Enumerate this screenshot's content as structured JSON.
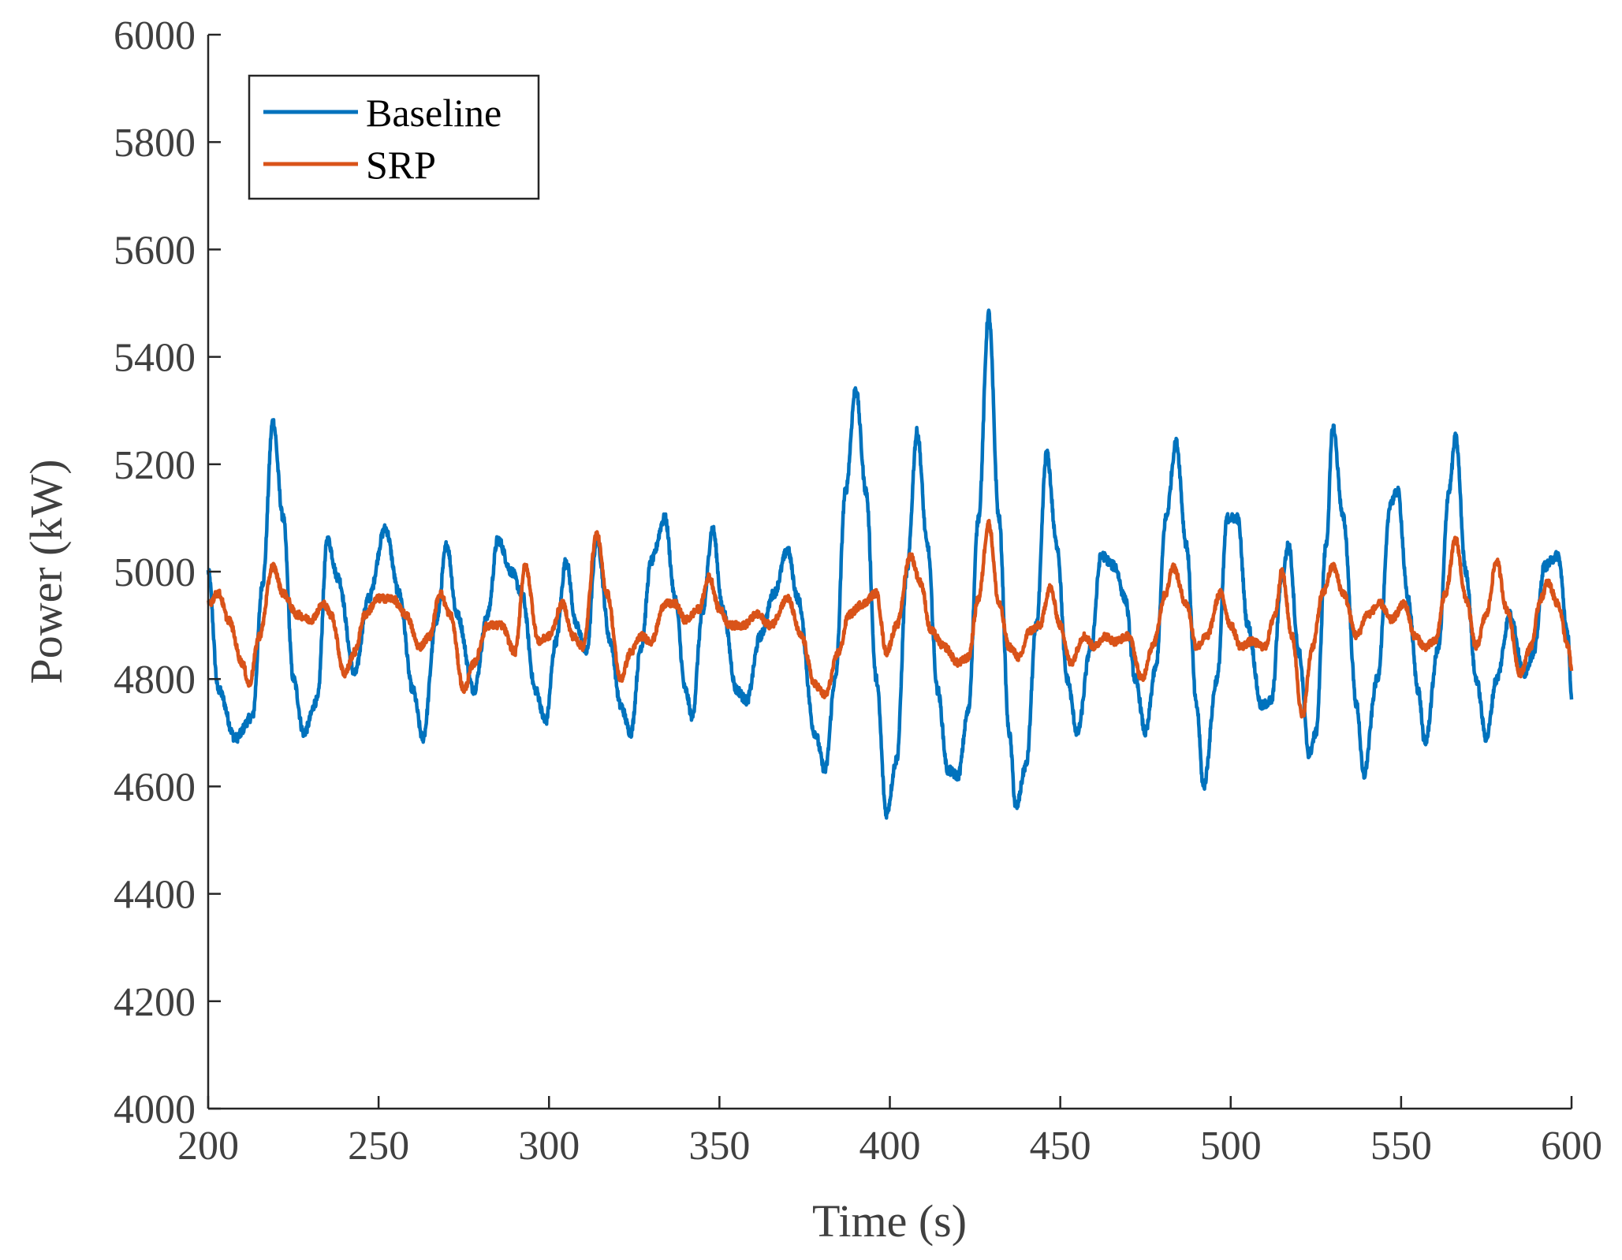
{
  "chart_data": {
    "type": "line",
    "title": "",
    "xlabel": "Time (s)",
    "ylabel": "Power (kW)",
    "xlim": [
      200,
      600
    ],
    "ylim": [
      4000,
      6000
    ],
    "xticks": [
      200,
      250,
      300,
      350,
      400,
      450,
      500,
      550,
      600
    ],
    "yticks": [
      4000,
      4200,
      4400,
      4600,
      4800,
      5000,
      5200,
      5400,
      5600,
      5800,
      6000
    ],
    "legend_position": "top-left",
    "series": [
      {
        "name": "Baseline",
        "color": "#0072BD",
        "keypoints": [
          [
            200,
            5000
          ],
          [
            203,
            4780
          ],
          [
            208,
            4690
          ],
          [
            213,
            4730
          ],
          [
            216,
            4980
          ],
          [
            219,
            5280
          ],
          [
            222,
            5100
          ],
          [
            225,
            4800
          ],
          [
            228,
            4700
          ],
          [
            232,
            4760
          ],
          [
            235,
            5060
          ],
          [
            238,
            4990
          ],
          [
            243,
            4810
          ],
          [
            247,
            4950
          ],
          [
            252,
            5080
          ],
          [
            256,
            4960
          ],
          [
            260,
            4780
          ],
          [
            263,
            4690
          ],
          [
            267,
            4910
          ],
          [
            270,
            5050
          ],
          [
            273,
            4920
          ],
          [
            278,
            4780
          ],
          [
            282,
            4920
          ],
          [
            285,
            5060
          ],
          [
            289,
            5000
          ],
          [
            292,
            4960
          ],
          [
            296,
            4780
          ],
          [
            299,
            4720
          ],
          [
            302,
            4870
          ],
          [
            305,
            5020
          ],
          [
            308,
            4900
          ],
          [
            311,
            4850
          ],
          [
            314,
            5060
          ],
          [
            318,
            4870
          ],
          [
            321,
            4750
          ],
          [
            324,
            4700
          ],
          [
            327,
            4860
          ],
          [
            330,
            5020
          ],
          [
            334,
            5100
          ],
          [
            337,
            4950
          ],
          [
            340,
            4780
          ],
          [
            342,
            4730
          ],
          [
            345,
            4920
          ],
          [
            348,
            5080
          ],
          [
            351,
            4930
          ],
          [
            355,
            4780
          ],
          [
            358,
            4760
          ],
          [
            362,
            4880
          ],
          [
            366,
            4960
          ],
          [
            370,
            5040
          ],
          [
            373,
            4950
          ],
          [
            378,
            4700
          ],
          [
            381,
            4630
          ],
          [
            384,
            4800
          ],
          [
            387,
            5150
          ],
          [
            390,
            5340
          ],
          [
            393,
            5150
          ],
          [
            396,
            4800
          ],
          [
            399,
            4550
          ],
          [
            402,
            4650
          ],
          [
            405,
            5000
          ],
          [
            408,
            5260
          ],
          [
            411,
            5050
          ],
          [
            414,
            4780
          ],
          [
            417,
            4630
          ],
          [
            420,
            4620
          ],
          [
            423,
            4740
          ],
          [
            426,
            5100
          ],
          [
            429,
            5480
          ],
          [
            432,
            5100
          ],
          [
            435,
            4700
          ],
          [
            437,
            4560
          ],
          [
            440,
            4640
          ],
          [
            443,
            4900
          ],
          [
            446,
            5220
          ],
          [
            449,
            5050
          ],
          [
            452,
            4800
          ],
          [
            455,
            4700
          ],
          [
            459,
            4860
          ],
          [
            462,
            5030
          ],
          [
            466,
            5010
          ],
          [
            469,
            4950
          ],
          [
            472,
            4800
          ],
          [
            475,
            4700
          ],
          [
            478,
            4820
          ],
          [
            481,
            5100
          ],
          [
            484,
            5240
          ],
          [
            487,
            5050
          ],
          [
            490,
            4750
          ],
          [
            492,
            4600
          ],
          [
            496,
            4800
          ],
          [
            499,
            5100
          ],
          [
            502,
            5100
          ],
          [
            505,
            4900
          ],
          [
            509,
            4750
          ],
          [
            512,
            4760
          ],
          [
            515,
            4990
          ],
          [
            517,
            5050
          ],
          [
            520,
            4850
          ],
          [
            523,
            4660
          ],
          [
            525,
            4700
          ],
          [
            528,
            5050
          ],
          [
            530,
            5270
          ],
          [
            533,
            5100
          ],
          [
            537,
            4750
          ],
          [
            539,
            4620
          ],
          [
            543,
            4800
          ],
          [
            547,
            5130
          ],
          [
            549,
            5150
          ],
          [
            552,
            4950
          ],
          [
            555,
            4780
          ],
          [
            557,
            4680
          ],
          [
            561,
            4860
          ],
          [
            564,
            5150
          ],
          [
            566,
            5250
          ],
          [
            569,
            5000
          ],
          [
            572,
            4800
          ],
          [
            575,
            4690
          ],
          [
            578,
            4800
          ],
          [
            582,
            4920
          ],
          [
            586,
            4810
          ],
          [
            589,
            4850
          ],
          [
            592,
            5010
          ],
          [
            596,
            5030
          ],
          [
            599,
            4880
          ],
          [
            600,
            4760
          ]
        ]
      },
      {
        "name": "SRP",
        "color": "#D95319",
        "keypoints": [
          [
            200,
            4940
          ],
          [
            203,
            4960
          ],
          [
            206,
            4910
          ],
          [
            210,
            4830
          ],
          [
            212,
            4790
          ],
          [
            215,
            4880
          ],
          [
            219,
            5010
          ],
          [
            222,
            4960
          ],
          [
            226,
            4920
          ],
          [
            230,
            4910
          ],
          [
            234,
            4940
          ],
          [
            236,
            4920
          ],
          [
            240,
            4810
          ],
          [
            243,
            4850
          ],
          [
            246,
            4920
          ],
          [
            250,
            4950
          ],
          [
            254,
            4950
          ],
          [
            258,
            4920
          ],
          [
            262,
            4860
          ],
          [
            265,
            4880
          ],
          [
            268,
            4960
          ],
          [
            271,
            4920
          ],
          [
            275,
            4780
          ],
          [
            278,
            4830
          ],
          [
            282,
            4900
          ],
          [
            286,
            4900
          ],
          [
            290,
            4850
          ],
          [
            293,
            5010
          ],
          [
            297,
            4870
          ],
          [
            300,
            4880
          ],
          [
            304,
            4940
          ],
          [
            307,
            4880
          ],
          [
            310,
            4860
          ],
          [
            314,
            5070
          ],
          [
            317,
            4960
          ],
          [
            321,
            4800
          ],
          [
            324,
            4850
          ],
          [
            327,
            4880
          ],
          [
            330,
            4870
          ],
          [
            334,
            4940
          ],
          [
            337,
            4940
          ],
          [
            340,
            4910
          ],
          [
            344,
            4930
          ],
          [
            347,
            4990
          ],
          [
            350,
            4930
          ],
          [
            353,
            4900
          ],
          [
            357,
            4900
          ],
          [
            361,
            4920
          ],
          [
            365,
            4900
          ],
          [
            370,
            4950
          ],
          [
            374,
            4880
          ],
          [
            378,
            4790
          ],
          [
            381,
            4770
          ],
          [
            385,
            4850
          ],
          [
            388,
            4920
          ],
          [
            392,
            4940
          ],
          [
            396,
            4960
          ],
          [
            399,
            4850
          ],
          [
            402,
            4900
          ],
          [
            406,
            5030
          ],
          [
            409,
            4980
          ],
          [
            412,
            4890
          ],
          [
            416,
            4860
          ],
          [
            420,
            4830
          ],
          [
            423,
            4840
          ],
          [
            426,
            4950
          ],
          [
            429,
            5090
          ],
          [
            432,
            4940
          ],
          [
            435,
            4860
          ],
          [
            438,
            4840
          ],
          [
            441,
            4890
          ],
          [
            444,
            4900
          ],
          [
            447,
            4970
          ],
          [
            450,
            4900
          ],
          [
            453,
            4830
          ],
          [
            457,
            4880
          ],
          [
            460,
            4860
          ],
          [
            463,
            4880
          ],
          [
            466,
            4870
          ],
          [
            470,
            4880
          ],
          [
            474,
            4800
          ],
          [
            477,
            4860
          ],
          [
            481,
            4960
          ],
          [
            483,
            5010
          ],
          [
            487,
            4940
          ],
          [
            490,
            4860
          ],
          [
            493,
            4880
          ],
          [
            497,
            4960
          ],
          [
            500,
            4900
          ],
          [
            503,
            4860
          ],
          [
            506,
            4870
          ],
          [
            510,
            4860
          ],
          [
            513,
            4920
          ],
          [
            515,
            5000
          ],
          [
            518,
            4880
          ],
          [
            521,
            4730
          ],
          [
            524,
            4860
          ],
          [
            527,
            4960
          ],
          [
            530,
            5010
          ],
          [
            533,
            4960
          ],
          [
            537,
            4880
          ],
          [
            540,
            4920
          ],
          [
            544,
            4940
          ],
          [
            547,
            4910
          ],
          [
            551,
            4940
          ],
          [
            554,
            4880
          ],
          [
            557,
            4860
          ],
          [
            560,
            4870
          ],
          [
            563,
            4960
          ],
          [
            566,
            5060
          ],
          [
            569,
            4950
          ],
          [
            572,
            4860
          ],
          [
            575,
            4920
          ],
          [
            578,
            5020
          ],
          [
            581,
            4930
          ],
          [
            585,
            4810
          ],
          [
            588,
            4860
          ],
          [
            591,
            4950
          ],
          [
            593,
            4980
          ],
          [
            596,
            4940
          ],
          [
            599,
            4860
          ],
          [
            600,
            4820
          ]
        ]
      }
    ]
  }
}
